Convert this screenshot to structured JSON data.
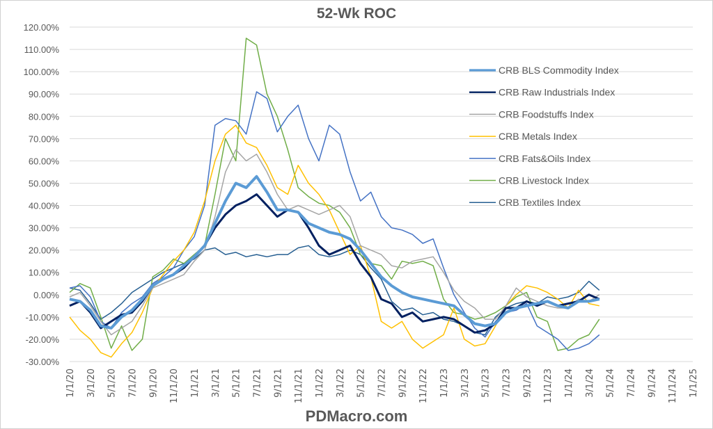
{
  "chart_data": {
    "type": "line",
    "title": "52-Wk ROC",
    "footer": "PDMacro.com",
    "xlabel": "",
    "ylabel": "",
    "ylim": [
      -30,
      120
    ],
    "yticks": [
      -30,
      -20,
      -10,
      0,
      10,
      20,
      30,
      40,
      50,
      60,
      70,
      80,
      90,
      100,
      110,
      120
    ],
    "ytick_format": "percent_2dp",
    "grid": true,
    "legend_placement": "right",
    "x_tick_labels": [
      "1/1/20",
      "3/1/20",
      "5/1/20",
      "7/1/20",
      "9/1/20",
      "11/1/20",
      "1/1/21",
      "3/1/21",
      "5/1/21",
      "7/1/21",
      "9/1/21",
      "11/1/21",
      "1/1/22",
      "3/1/22",
      "5/1/22",
      "7/1/22",
      "9/1/22",
      "11/1/22",
      "1/1/23",
      "3/1/23",
      "5/1/23",
      "7/1/23",
      "9/1/23",
      "11/1/23",
      "1/1/24",
      "3/1/24",
      "5/1/24",
      "7/1/24",
      "9/1/24",
      "11/1/24",
      "1/1/25"
    ],
    "x": [
      "2020-01",
      "2020-02",
      "2020-03",
      "2020-04",
      "2020-05",
      "2020-06",
      "2020-07",
      "2020-08",
      "2020-09",
      "2020-10",
      "2020-11",
      "2020-12",
      "2021-01",
      "2021-02",
      "2021-03",
      "2021-04",
      "2021-05",
      "2021-06",
      "2021-07",
      "2021-08",
      "2021-09",
      "2021-10",
      "2021-11",
      "2021-12",
      "2022-01",
      "2022-02",
      "2022-03",
      "2022-04",
      "2022-05",
      "2022-06",
      "2022-07",
      "2022-08",
      "2022-09",
      "2022-10",
      "2022-11",
      "2022-12",
      "2023-01",
      "2023-02",
      "2023-03",
      "2023-04",
      "2023-05",
      "2023-06",
      "2023-07",
      "2023-08",
      "2023-09",
      "2023-10",
      "2023-11",
      "2023-12",
      "2024-01",
      "2024-02",
      "2024-03",
      "2024-04"
    ],
    "series": [
      {
        "name": "CRB BLS Commodity Index",
        "color": "#5B9BD5",
        "width": 4,
        "values": [
          -2,
          -3,
          -7,
          -14,
          -15,
          -10,
          -7,
          -2,
          4,
          7,
          9,
          13,
          17,
          22,
          32,
          42,
          50,
          48,
          53,
          46,
          38,
          38,
          37,
          32,
          30,
          28,
          27,
          25,
          20,
          14,
          8,
          4,
          1,
          -1,
          -2,
          -3,
          -4,
          -5,
          -9,
          -13,
          -14,
          -13,
          -8,
          -6,
          -5,
          -4,
          -3,
          -5,
          -6,
          -3,
          -3,
          -2
        ]
      },
      {
        "name": "CRB Raw Industrials Index",
        "color": "#002060",
        "width": 3,
        "values": [
          -5,
          -3,
          -8,
          -15,
          -12,
          -9,
          -8,
          -3,
          4,
          7,
          9,
          12,
          17,
          22,
          30,
          36,
          40,
          42,
          45,
          40,
          35,
          38,
          37,
          30,
          22,
          18,
          20,
          22,
          14,
          8,
          -2,
          -4,
          -10,
          -8,
          -12,
          -11,
          -10,
          -11,
          -14,
          -17,
          -16,
          -13,
          -6,
          -6,
          -3,
          -5,
          -3,
          -5,
          -4,
          -3,
          0,
          -2
        ]
      },
      {
        "name": "CRB Foodstuffs Index",
        "color": "#A5A5A5",
        "width": 1.5,
        "values": [
          -1,
          1,
          -5,
          -12,
          -18,
          -15,
          -12,
          -5,
          3,
          5,
          7,
          9,
          15,
          20,
          35,
          55,
          65,
          60,
          63,
          55,
          45,
          38,
          40,
          38,
          36,
          38,
          40,
          35,
          22,
          20,
          18,
          13,
          12,
          15,
          16,
          17,
          10,
          2,
          -3,
          -6,
          -11,
          -11,
          -5,
          3,
          -1,
          -3,
          -5,
          -6,
          -6,
          -2,
          -3,
          0
        ]
      },
      {
        "name": "CRB Metals Index",
        "color": "#FFC000",
        "width": 1.5,
        "values": [
          -10,
          -16,
          -20,
          -26,
          -28,
          -22,
          -17,
          -8,
          3,
          9,
          15,
          20,
          28,
          42,
          60,
          72,
          76,
          68,
          66,
          58,
          48,
          45,
          58,
          50,
          45,
          38,
          28,
          18,
          22,
          8,
          -12,
          -15,
          -12,
          -20,
          -24,
          -21,
          -18,
          -6,
          -20,
          -23,
          -22,
          -14,
          -5,
          0,
          4,
          3,
          1,
          -2,
          -6,
          2,
          -4,
          -5
        ]
      },
      {
        "name": "CRB Fats&Oils Index",
        "color": "#4472C4",
        "width": 1.5,
        "values": [
          3,
          4,
          -1,
          -12,
          -15,
          -8,
          -4,
          -1,
          5,
          8,
          12,
          20,
          26,
          40,
          76,
          79,
          78,
          72,
          91,
          88,
          73,
          80,
          85,
          70,
          60,
          76,
          72,
          55,
          42,
          46,
          35,
          30,
          29,
          27,
          23,
          25,
          12,
          0,
          -8,
          -15,
          -19,
          -12,
          -8,
          -7,
          -4,
          -14,
          -17,
          -20,
          -25,
          -24,
          -22,
          -18
        ]
      },
      {
        "name": "CRB Livestock Index",
        "color": "#70AD47",
        "width": 1.5,
        "values": [
          1,
          5,
          3,
          -10,
          -24,
          -14,
          -25,
          -20,
          8,
          11,
          16,
          14,
          18,
          22,
          45,
          70,
          60,
          115,
          112,
          90,
          80,
          65,
          48,
          44,
          41,
          40,
          37,
          30,
          18,
          14,
          13,
          7,
          15,
          14,
          15,
          13,
          -2,
          -8,
          -9,
          -11,
          -10,
          -8,
          -5,
          -1,
          1,
          -10,
          -12,
          -25,
          -24,
          -20,
          -18,
          -11
        ]
      },
      {
        "name": "CRB Textiles Index",
        "color": "#255E91",
        "width": 1.5,
        "values": [
          3,
          2,
          -4,
          -11,
          -8,
          -4,
          1,
          4,
          7,
          10,
          12,
          14,
          16,
          20,
          21,
          18,
          19,
          17,
          18,
          17,
          18,
          18,
          21,
          22,
          18,
          17,
          18,
          20,
          18,
          12,
          7,
          -3,
          -7,
          -6,
          -9,
          -8,
          -11,
          -12,
          -14,
          -17,
          -18,
          -10,
          -6,
          -4,
          -3,
          -4,
          -1,
          -2,
          -1,
          1,
          6,
          2
        ]
      }
    ]
  }
}
